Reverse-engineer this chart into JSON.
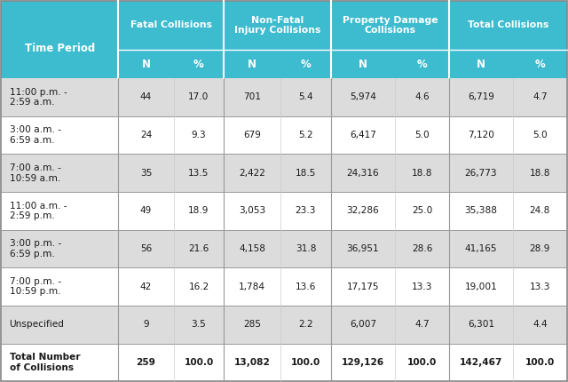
{
  "header_bg_color": "#3DBBCF",
  "header_text_color": "#FFFFFF",
  "row_bg_shaded": "#DCDCDC",
  "row_bg_white": "#FFFFFF",
  "fig_bg_color": "#DCDCDC",
  "border_color": "#AAAAAA",
  "divider_color": "#888888",
  "text_color": "#1A1A1A",
  "col_headers_top": [
    "Fatal Collisions",
    "Non-Fatal\nInjury Collisions",
    "Property Damage\nCollisions",
    "Total Collisions"
  ],
  "col_headers_sub": [
    "N",
    "%",
    "N",
    "%",
    "N",
    "%",
    "N",
    "%"
  ],
  "time_periods": [
    "11:00 p.m. -\n2:59 a.m.",
    "3:00 a.m. -\n6:59 a.m.",
    "7:00 a.m. -\n10:59 a.m.",
    "11:00 a.m. -\n2:59 p.m.",
    "3:00 p.m. -\n6:59 p.m.",
    "7:00 p.m. -\n10:59 p.m.",
    "Unspecified",
    "Total Number\nof Collisions"
  ],
  "row_shading": [
    true,
    false,
    true,
    false,
    true,
    false,
    true,
    false
  ],
  "data": [
    [
      "44",
      "17.0",
      "701",
      "5.4",
      "5,974",
      "4.6",
      "6,719",
      "4.7"
    ],
    [
      "24",
      "9.3",
      "679",
      "5.2",
      "6,417",
      "5.0",
      "7,120",
      "5.0"
    ],
    [
      "35",
      "13.5",
      "2,422",
      "18.5",
      "24,316",
      "18.8",
      "26,773",
      "18.8"
    ],
    [
      "49",
      "18.9",
      "3,053",
      "23.3",
      "32,286",
      "25.0",
      "35,388",
      "24.8"
    ],
    [
      "56",
      "21.6",
      "4,158",
      "31.8",
      "36,951",
      "28.6",
      "41,165",
      "28.9"
    ],
    [
      "42",
      "16.2",
      "1,784",
      "13.6",
      "17,175",
      "13.3",
      "19,001",
      "13.3"
    ],
    [
      "9",
      "3.5",
      "285",
      "2.2",
      "6,007",
      "4.7",
      "6,301",
      "4.4"
    ],
    [
      "259",
      "100.0",
      "13,082",
      "100.0",
      "129,126",
      "100.0",
      "142,467",
      "100.0"
    ]
  ],
  "figsize": [
    6.4,
    4.3
  ],
  "dpi": 100
}
